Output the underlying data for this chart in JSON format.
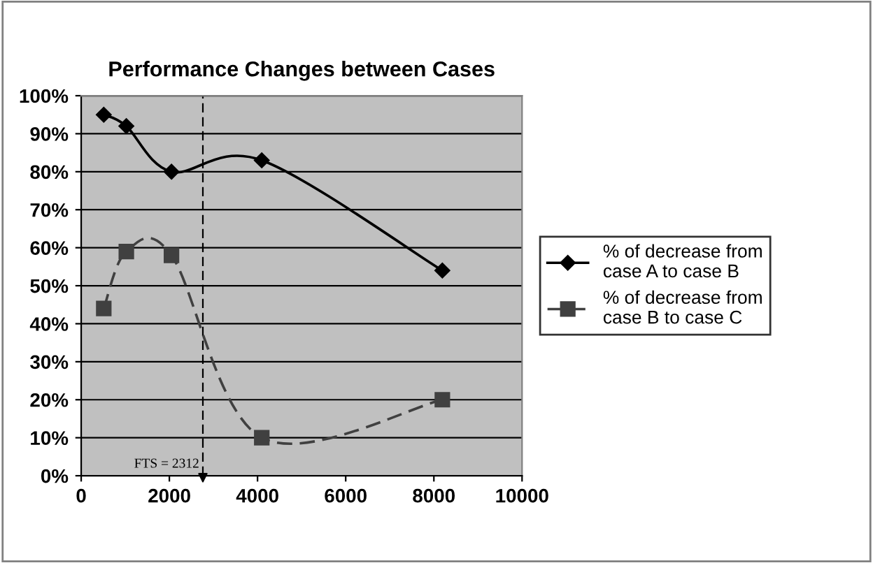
{
  "chart_data": {
    "type": "line",
    "title": "Performance Changes between Cases",
    "x": [
      512,
      1024,
      2048,
      4096,
      8192
    ],
    "series": [
      {
        "name": "% of decrease from\ncase A to case B",
        "color": "#000000",
        "values": [
          95,
          92,
          80,
          83,
          54
        ],
        "marker": "diamond",
        "line_style": "solid"
      },
      {
        "name": "% of decrease from\ncase B to case C",
        "color": "#404040",
        "values": [
          44,
          59,
          58,
          10,
          20
        ],
        "marker": "square",
        "line_style": "dashed"
      }
    ],
    "xlim": [
      0,
      10000
    ],
    "xticks": [
      0,
      2000,
      4000,
      6000,
      8000,
      10000
    ],
    "ylim": [
      0,
      100
    ],
    "yticks": [
      {
        "value": 0,
        "label": "0%"
      },
      {
        "value": 10,
        "label": "10%"
      },
      {
        "value": 20,
        "label": "20%"
      },
      {
        "value": 30,
        "label": "30%"
      },
      {
        "value": 40,
        "label": "40%"
      },
      {
        "value": 50,
        "label": "50%"
      },
      {
        "value": 60,
        "label": "60%"
      },
      {
        "value": 70,
        "label": "70%"
      },
      {
        "value": 80,
        "label": "80%"
      },
      {
        "value": 90,
        "label": "90%"
      },
      {
        "value": 100,
        "label": "100%"
      }
    ],
    "grid": "y",
    "legend": "right",
    "annotations": [
      "FTS = 2312"
    ],
    "ref_lines": [
      {
        "axis": "x",
        "value": 2760,
        "line_style": "dashed",
        "color": "#000000"
      }
    ]
  }
}
